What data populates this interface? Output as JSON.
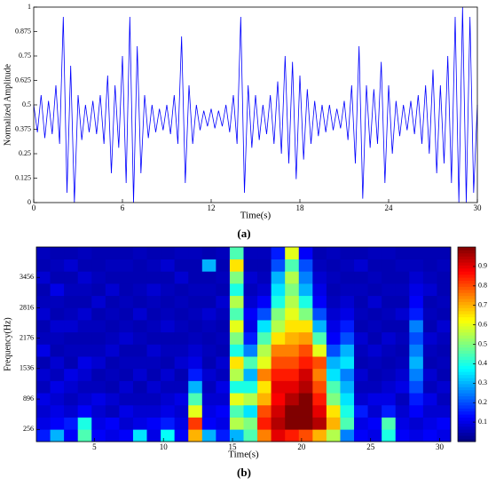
{
  "chart_data": [
    {
      "type": "line",
      "caption": "(a)",
      "xlabel": "Time(s)",
      "ylabel": "Normalized Amplitude",
      "color": "#0000ff",
      "xlim": [
        0,
        30
      ],
      "xticks": [
        0,
        6,
        12,
        18,
        24,
        30
      ],
      "ylim": [
        0,
        1
      ],
      "yticks": [
        0,
        0.125,
        0.25,
        0.375,
        0.5,
        0.625,
        0.75,
        0.875,
        1
      ],
      "x": [
        0,
        0.25,
        0.5,
        0.75,
        1,
        1.25,
        1.5,
        1.75,
        2,
        2.25,
        2.5,
        2.75,
        3,
        3.25,
        3.5,
        3.75,
        4,
        4.25,
        4.5,
        4.75,
        5,
        5.25,
        5.5,
        5.75,
        6,
        6.25,
        6.5,
        6.75,
        7,
        7.25,
        7.5,
        7.75,
        8,
        8.25,
        8.5,
        8.75,
        9,
        9.25,
        9.5,
        9.75,
        10,
        10.25,
        10.5,
        10.75,
        11,
        11.25,
        11.5,
        11.75,
        12,
        12.25,
        12.5,
        12.75,
        13,
        13.25,
        13.5,
        13.75,
        14,
        14.25,
        14.5,
        14.75,
        15,
        15.25,
        15.5,
        15.75,
        16,
        16.25,
        16.5,
        16.75,
        17,
        17.25,
        17.5,
        17.75,
        18,
        18.25,
        18.5,
        18.75,
        19,
        19.25,
        19.5,
        19.75,
        20,
        20.25,
        20.5,
        20.75,
        21,
        21.25,
        21.5,
        21.75,
        22,
        22.25,
        22.5,
        22.75,
        23,
        23.25,
        23.5,
        23.75,
        24,
        24.25,
        24.5,
        24.75,
        25,
        25.25,
        25.5,
        25.75,
        26,
        26.25,
        26.5,
        26.75,
        27,
        27.25,
        27.5,
        27.75,
        28,
        28.25,
        28.5,
        28.75,
        29,
        29.25,
        29.5,
        29.75,
        30
      ],
      "values": [
        0.5,
        0.36,
        0.55,
        0.33,
        0.52,
        0.35,
        0.6,
        0.3,
        0.95,
        0.05,
        0.7,
        0,
        0.55,
        0.32,
        0.5,
        0.36,
        0.52,
        0.35,
        0.55,
        0.3,
        0.65,
        0.15,
        0.6,
        0.28,
        0.75,
        0.1,
        0.95,
        0,
        0.8,
        0.15,
        0.55,
        0.33,
        0.5,
        0.36,
        0.48,
        0.37,
        0.5,
        0.35,
        0.55,
        0.3,
        0.85,
        0.1,
        0.6,
        0.3,
        0.5,
        0.37,
        0.47,
        0.39,
        0.48,
        0.38,
        0.47,
        0.39,
        0.5,
        0.36,
        0.55,
        0.3,
        0.95,
        0.05,
        0.6,
        0.28,
        0.55,
        0.32,
        0.5,
        0.35,
        0.55,
        0.3,
        0.62,
        0.25,
        0.75,
        0.2,
        0.72,
        0.12,
        0.65,
        0.22,
        0.58,
        0.3,
        0.52,
        0.34,
        0.5,
        0.36,
        0.5,
        0.37,
        0.48,
        0.38,
        0.52,
        0.32,
        0.6,
        0.2,
        0.8,
        0.02,
        0.6,
        0.28,
        0.58,
        0.3,
        0.72,
        0.1,
        0.6,
        0.25,
        0.52,
        0.34,
        0.5,
        0.37,
        0.52,
        0.35,
        0.55,
        0.3,
        0.6,
        0.25,
        0.68,
        0.15,
        0.6,
        0.2,
        0.75,
        0.1,
        0.95,
        0,
        1,
        0,
        0.95,
        0.05,
        0.5
      ]
    },
    {
      "type": "heatmap",
      "caption": "(b)",
      "xlabel": "Time(s)",
      "ylabel": "Frequency(Hz)",
      "colormap": "jet",
      "xlim": [
        0.8,
        30.8
      ],
      "xticks": [
        5,
        10,
        15,
        20,
        25,
        30
      ],
      "ylim": [
        0,
        4096
      ],
      "yticks": [
        256,
        896,
        1536,
        2176,
        2816,
        3456
      ],
      "clim": [
        0,
        1
      ],
      "cticks": [
        0.1,
        0.2,
        0.3,
        0.4,
        0.5,
        0.6,
        0.7,
        0.8,
        0.9
      ],
      "x": [
        1.3,
        2.3,
        3.3,
        4.3,
        5.3,
        6.3,
        7.3,
        8.3,
        9.3,
        10.3,
        11.3,
        12.3,
        13.3,
        14.3,
        15.3,
        16.3,
        17.3,
        18.3,
        19.3,
        20.3,
        21.3,
        22.3,
        23.3,
        24.3,
        25.3,
        26.3,
        27.3,
        28.3,
        29.3,
        30.3
      ],
      "y": [
        128,
        384,
        640,
        896,
        1152,
        1408,
        1664,
        1920,
        2176,
        2432,
        2688,
        2944,
        3200,
        3456,
        3712,
        3968
      ],
      "z": [
        [
          0.15,
          0.1,
          0.08,
          0.1,
          0.06,
          0.08,
          0.05,
          0.1,
          0.06,
          0.05,
          0.08,
          0.06,
          0.05,
          0.08,
          0.05,
          0.06
        ],
        [
          0.3,
          0.12,
          0.1,
          0.08,
          0.1,
          0.06,
          0.08,
          0.05,
          0.06,
          0.08,
          0.05,
          0.06,
          0.1,
          0.05,
          0.06,
          0.05
        ],
        [
          0.12,
          0.15,
          0.08,
          0.06,
          0.08,
          0.1,
          0.05,
          0.06,
          0.05,
          0.08,
          0.06,
          0.05,
          0.06,
          0.05,
          0.08,
          0.05
        ],
        [
          0.45,
          0.4,
          0.12,
          0.08,
          0.06,
          0.08,
          0.1,
          0.06,
          0.05,
          0.06,
          0.08,
          0.05,
          0.06,
          0.08,
          0.05,
          0.06
        ],
        [
          0.12,
          0.1,
          0.08,
          0.1,
          0.06,
          0.05,
          0.08,
          0.06,
          0.05,
          0.06,
          0.05,
          0.08,
          0.05,
          0.06,
          0.05,
          0.05
        ],
        [
          0.1,
          0.12,
          0.06,
          0.08,
          0.05,
          0.06,
          0.05,
          0.08,
          0.06,
          0.05,
          0.06,
          0.05,
          0.08,
          0.05,
          0.06,
          0.05
        ],
        [
          0.12,
          0.08,
          0.1,
          0.06,
          0.08,
          0.05,
          0.06,
          0.05,
          0.08,
          0.06,
          0.05,
          0.06,
          0.05,
          0.05,
          0.06,
          0.05
        ],
        [
          0.35,
          0.1,
          0.08,
          0.06,
          0.05,
          0.08,
          0.06,
          0.05,
          0.06,
          0.05,
          0.08,
          0.05,
          0.06,
          0.05,
          0.05,
          0.06
        ],
        [
          0.1,
          0.12,
          0.08,
          0.06,
          0.08,
          0.05,
          0.06,
          0.08,
          0.05,
          0.06,
          0.05,
          0.06,
          0.08,
          0.05,
          0.06,
          0.05
        ],
        [
          0.38,
          0.15,
          0.1,
          0.08,
          0.06,
          0.08,
          0.05,
          0.06,
          0.05,
          0.08,
          0.06,
          0.05,
          0.06,
          0.05,
          0.08,
          0.05
        ],
        [
          0.12,
          0.1,
          0.08,
          0.1,
          0.06,
          0.05,
          0.08,
          0.06,
          0.05,
          0.06,
          0.05,
          0.06,
          0.05,
          0.08,
          0.05,
          0.06
        ],
        [
          0.7,
          0.82,
          0.6,
          0.45,
          0.3,
          0.15,
          0.1,
          0.08,
          0.06,
          0.05,
          0.06,
          0.05,
          0.06,
          0.05,
          0.05,
          0.06
        ],
        [
          0.3,
          0.12,
          0.1,
          0.08,
          0.06,
          0.08,
          0.05,
          0.06,
          0.05,
          0.06,
          0.08,
          0.05,
          0.06,
          0.05,
          0.3,
          0.05
        ],
        [
          0.15,
          0.1,
          0.12,
          0.08,
          0.1,
          0.06,
          0.08,
          0.05,
          0.06,
          0.05,
          0.06,
          0.08,
          0.05,
          0.06,
          0.05,
          0.06
        ],
        [
          0.3,
          0.55,
          0.45,
          0.6,
          0.4,
          0.55,
          0.65,
          0.4,
          0.5,
          0.6,
          0.45,
          0.55,
          0.4,
          0.5,
          0.65,
          0.45
        ],
        [
          0.45,
          0.5,
          0.35,
          0.55,
          0.4,
          0.3,
          0.45,
          0.25,
          0.15,
          0.1,
          0.12,
          0.08,
          0.06,
          0.08,
          0.05,
          0.06
        ],
        [
          0.75,
          0.85,
          0.8,
          0.7,
          0.65,
          0.75,
          0.6,
          0.55,
          0.45,
          0.35,
          0.2,
          0.12,
          0.08,
          0.06,
          0.05,
          0.06
        ],
        [
          0.9,
          0.95,
          0.92,
          0.88,
          0.9,
          0.85,
          0.8,
          0.75,
          0.65,
          0.55,
          0.5,
          0.4,
          0.35,
          0.3,
          0.2,
          0.15
        ],
        [
          0.85,
          1,
          1,
          0.95,
          0.9,
          0.85,
          0.8,
          0.75,
          0.7,
          0.65,
          0.6,
          0.55,
          0.5,
          0.55,
          0.45,
          0.6
        ],
        [
          0.8,
          1,
          1,
          1,
          0.95,
          0.92,
          0.85,
          0.8,
          0.72,
          0.65,
          0.5,
          0.4,
          0.3,
          0.25,
          0.2,
          0.12
        ],
        [
          0.7,
          0.95,
          0.9,
          0.85,
          0.8,
          0.75,
          0.8,
          0.6,
          0.45,
          0.3,
          0.2,
          0.12,
          0.1,
          0.08,
          0.06,
          0.05
        ],
        [
          0.55,
          0.7,
          0.65,
          0.5,
          0.45,
          0.35,
          0.3,
          0.2,
          0.12,
          0.1,
          0.08,
          0.06,
          0.05,
          0.06,
          0.05,
          0.06
        ],
        [
          0.25,
          0.45,
          0.4,
          0.35,
          0.3,
          0.25,
          0.35,
          0.3,
          0.2,
          0.15,
          0.1,
          0.08,
          0.06,
          0.05,
          0.06,
          0.05
        ],
        [
          0.12,
          0.1,
          0.15,
          0.08,
          0.06,
          0.08,
          0.05,
          0.06,
          0.08,
          0.05,
          0.06,
          0.05,
          0.06,
          0.05,
          0.08,
          0.05
        ],
        [
          0.1,
          0.12,
          0.08,
          0.1,
          0.06,
          0.05,
          0.06,
          0.08,
          0.05,
          0.06,
          0.05,
          0.08,
          0.05,
          0.06,
          0.05,
          0.06
        ],
        [
          0.4,
          0.45,
          0.15,
          0.1,
          0.08,
          0.06,
          0.05,
          0.06,
          0.08,
          0.05,
          0.06,
          0.05,
          0.06,
          0.05,
          0.05,
          0.06
        ],
        [
          0.12,
          0.1,
          0.08,
          0.06,
          0.1,
          0.08,
          0.06,
          0.05,
          0.06,
          0.05,
          0.08,
          0.05,
          0.06,
          0.05,
          0.06,
          0.05
        ],
        [
          0.1,
          0.08,
          0.12,
          0.15,
          0.2,
          0.25,
          0.3,
          0.25,
          0.2,
          0.25,
          0.15,
          0.12,
          0.1,
          0.08,
          0.06,
          0.05
        ],
        [
          0.12,
          0.1,
          0.08,
          0.1,
          0.06,
          0.08,
          0.05,
          0.06,
          0.08,
          0.05,
          0.06,
          0.05,
          0.08,
          0.06,
          0.05,
          0.05
        ],
        [
          0.1,
          0.12,
          0.08,
          0.06,
          0.08,
          0.05,
          0.06,
          0.05,
          0.06,
          0.08,
          0.05,
          0.06,
          0.05,
          0.05,
          0.06,
          0.05
        ]
      ]
    }
  ]
}
